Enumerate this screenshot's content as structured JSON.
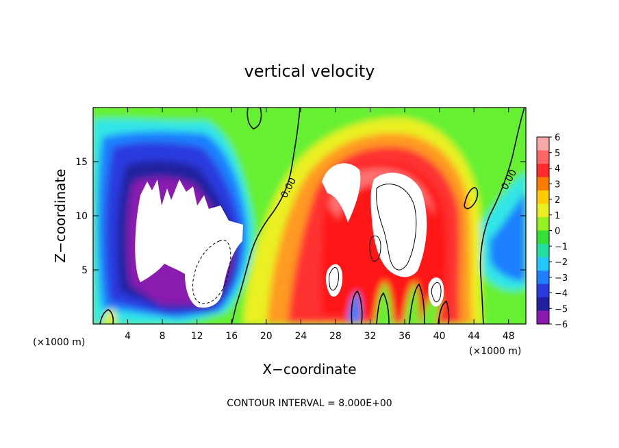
{
  "chart_data": {
    "type": "heatmap",
    "title": "vertical velocity",
    "xlabel": "X−coordinate",
    "ylabel": "Z−coordinate",
    "x_unit_left": "(×1000 m)",
    "x_unit_right": "(×1000 m)",
    "xlim": [
      0,
      50
    ],
    "ylim": [
      0,
      20
    ],
    "x_ticks": [
      4,
      8,
      12,
      16,
      20,
      24,
      28,
      32,
      36,
      40,
      44,
      48
    ],
    "y_ticks": [
      5,
      10,
      15
    ],
    "colorbar": {
      "labels": [
        "6",
        "5",
        "4",
        "3",
        "2",
        "1",
        "0",
        "−1",
        "−2",
        "−3",
        "−4",
        "−5",
        "−6"
      ],
      "range": [
        -6,
        6
      ],
      "colors": [
        "#f7a8a8",
        "#ff6666",
        "#ff2a2a",
        "#ff7a00",
        "#ffcc00",
        "#eaf020",
        "#99f020",
        "#33e033",
        "#22e0a0",
        "#22c8ff",
        "#1f80ff",
        "#2a3adf",
        "#2020a0",
        "#8a1ab0"
      ]
    },
    "contour_labels": [
      "0.00",
      "0.00"
    ],
    "footnote": "CONTOUR INTERVAL = 8.000E+00"
  }
}
